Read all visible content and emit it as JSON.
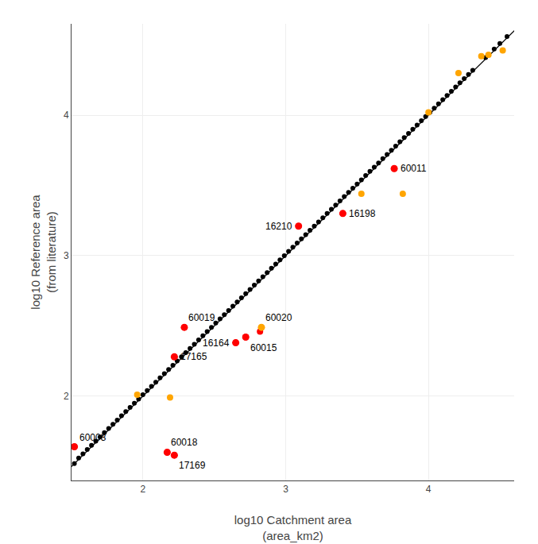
{
  "chart_data": {
    "type": "scatter",
    "xlabel": "log10 Catchment area\n(area_km2)",
    "ylabel": "log10 Reference area\n(from literature)",
    "xlim": [
      1.5,
      4.6
    ],
    "ylim": [
      1.4,
      4.65
    ],
    "xticks": [
      2,
      3,
      4
    ],
    "yticks": [
      2,
      3,
      4
    ],
    "grid": true,
    "series": [
      {
        "color": "black",
        "x": [
          1.52,
          1.55,
          1.58,
          1.61,
          1.64,
          1.67,
          1.7,
          1.73,
          1.76,
          1.79,
          1.82,
          1.85,
          1.88,
          1.91,
          1.94,
          1.97,
          2.0,
          2.03,
          2.06,
          2.09,
          2.12,
          2.15,
          2.18,
          2.21,
          2.24,
          2.27,
          2.3,
          2.33,
          2.36,
          2.39,
          2.42,
          2.45,
          2.48,
          2.51,
          2.54,
          2.57,
          2.6,
          2.63,
          2.66,
          2.69,
          2.72,
          2.75,
          2.78,
          2.81,
          2.84,
          2.87,
          2.9,
          2.93,
          2.96,
          2.99,
          3.02,
          3.05,
          3.08,
          3.11,
          3.14,
          3.17,
          3.2,
          3.23,
          3.26,
          3.29,
          3.32,
          3.35,
          3.38,
          3.41,
          3.44,
          3.47,
          3.5,
          3.53,
          3.56,
          3.59,
          3.62,
          3.65,
          3.68,
          3.71,
          3.74,
          3.77,
          3.8,
          3.83,
          3.86,
          3.89,
          3.92,
          3.95,
          3.98,
          4.01,
          4.04,
          4.07,
          4.1,
          4.13,
          4.16,
          4.19,
          4.22,
          4.25,
          4.28,
          4.31,
          4.4,
          4.46,
          4.5,
          4.55
        ],
        "values": [
          1.52,
          1.56,
          1.59,
          1.62,
          1.65,
          1.68,
          1.71,
          1.74,
          1.77,
          1.8,
          1.83,
          1.86,
          1.89,
          1.92,
          1.95,
          1.98,
          2.01,
          2.04,
          2.07,
          2.1,
          2.13,
          2.16,
          2.19,
          2.22,
          2.25,
          2.28,
          2.31,
          2.34,
          2.37,
          2.4,
          2.43,
          2.46,
          2.49,
          2.52,
          2.55,
          2.58,
          2.61,
          2.64,
          2.67,
          2.7,
          2.73,
          2.76,
          2.79,
          2.82,
          2.85,
          2.88,
          2.91,
          2.94,
          2.97,
          3.0,
          3.03,
          3.06,
          3.09,
          3.12,
          3.15,
          3.18,
          3.21,
          3.24,
          3.27,
          3.3,
          3.33,
          3.36,
          3.39,
          3.42,
          3.45,
          3.48,
          3.51,
          3.54,
          3.57,
          3.6,
          3.63,
          3.66,
          3.69,
          3.72,
          3.75,
          3.78,
          3.81,
          3.84,
          3.87,
          3.9,
          3.93,
          3.96,
          3.99,
          4.02,
          4.05,
          4.08,
          4.11,
          4.14,
          4.17,
          4.2,
          4.23,
          4.26,
          4.29,
          4.32,
          4.41,
          4.47,
          4.51,
          4.56
        ]
      },
      {
        "color": "#FFA500",
        "x": [
          1.96,
          2.19,
          2.83,
          3.53,
          3.82,
          4.0,
          4.21,
          4.37,
          4.42,
          4.52
        ],
        "values": [
          2.01,
          1.99,
          2.49,
          3.44,
          3.44,
          4.02,
          4.3,
          4.42,
          4.43,
          4.46
        ]
      },
      {
        "color": "red",
        "x": [
          1.52,
          2.17,
          2.22,
          2.22,
          2.29,
          2.65,
          2.72,
          2.82,
          3.09,
          3.4,
          3.76
        ],
        "values": [
          1.64,
          1.6,
          1.58,
          2.28,
          2.49,
          2.38,
          2.42,
          2.46,
          3.21,
          3.3,
          3.62
        ]
      }
    ],
    "annotations": [
      {
        "text": "60003",
        "x": 1.52,
        "y": 1.64,
        "color": "red"
      },
      {
        "text": "60018",
        "x": 2.17,
        "y": 1.6,
        "color": "red"
      },
      {
        "text": "17169",
        "x": 2.22,
        "y": 1.58,
        "color": "red"
      },
      {
        "text": "17165",
        "x": 2.22,
        "y": 2.28,
        "color": "red"
      },
      {
        "text": "60019",
        "x": 2.29,
        "y": 2.49,
        "color": "red"
      },
      {
        "text": "16164",
        "x": 2.65,
        "y": 2.38,
        "color": "red"
      },
      {
        "text": "60020",
        "x": 2.83,
        "y": 2.49,
        "color": "#FFA500"
      },
      {
        "text": "60015",
        "x": 2.72,
        "y": 2.42,
        "color": "red"
      },
      {
        "text": "16210",
        "x": 3.09,
        "y": 3.21,
        "color": "red"
      },
      {
        "text": "16198",
        "x": 3.4,
        "y": 3.3,
        "color": "red"
      },
      {
        "text": "60011",
        "x": 3.76,
        "y": 3.62,
        "color": "red"
      }
    ]
  }
}
